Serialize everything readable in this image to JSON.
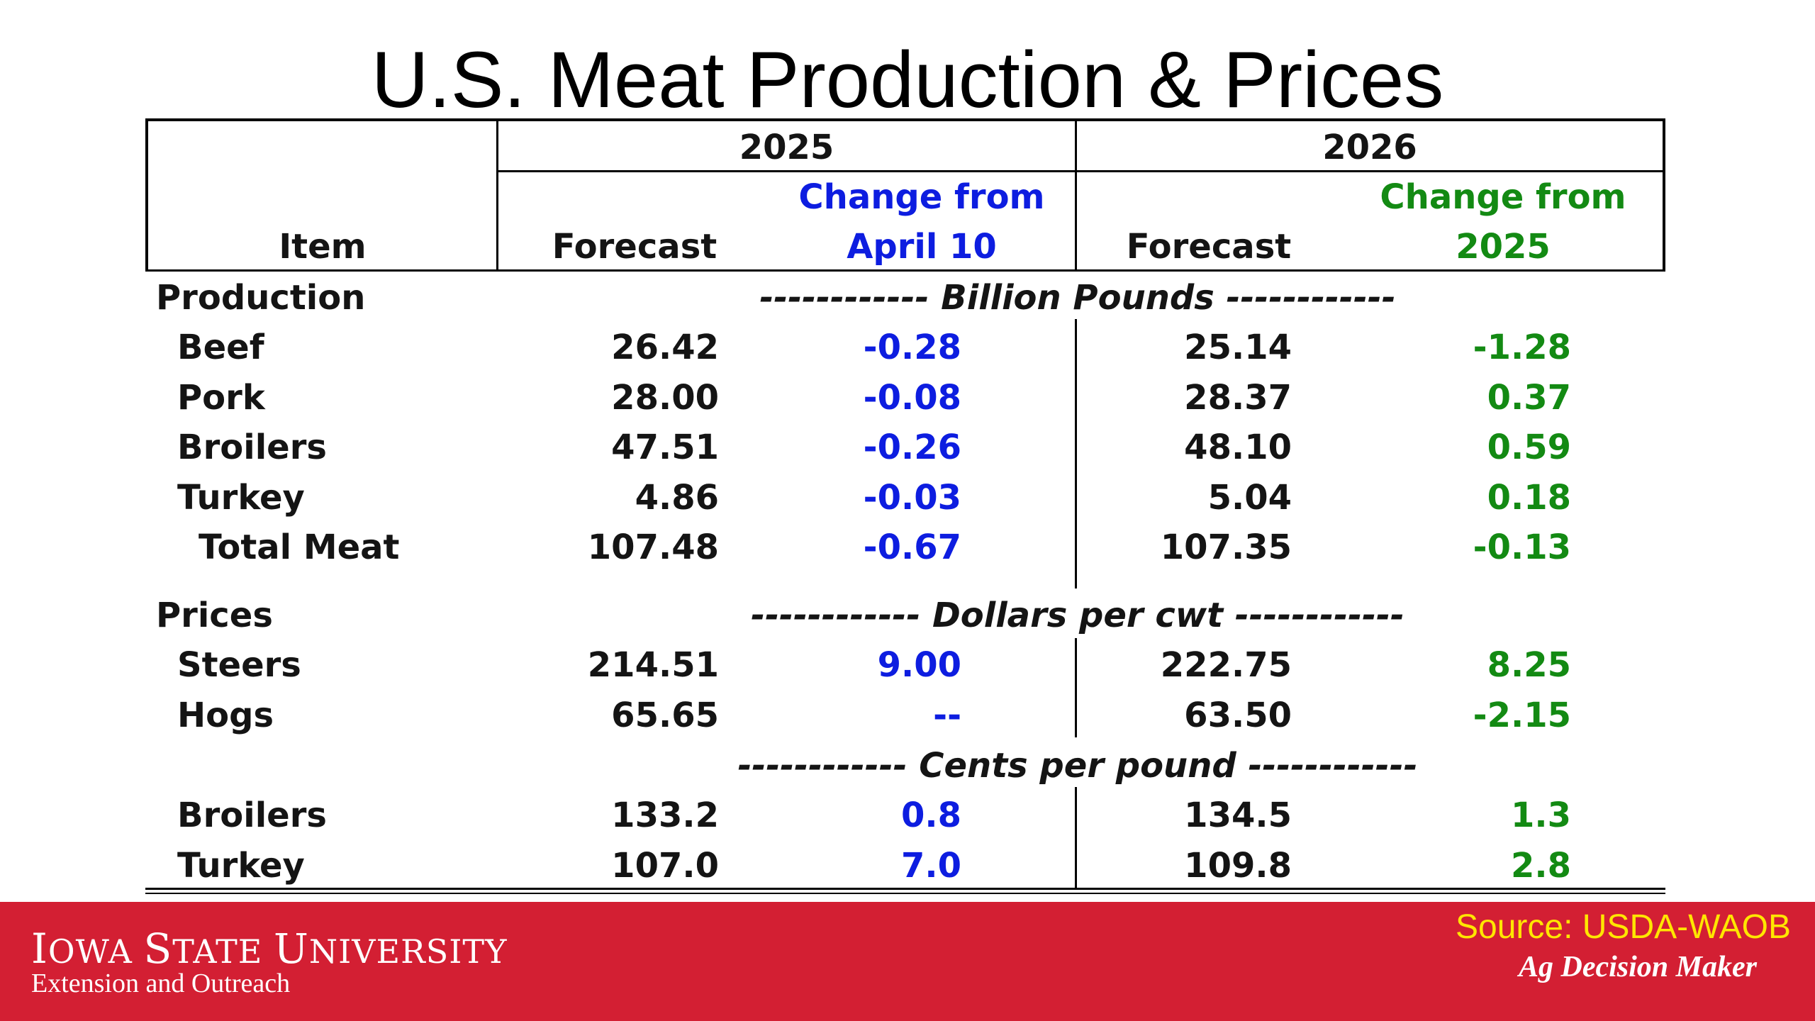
{
  "title": "U.S. Meat Production & Prices",
  "colors": {
    "change_2025": "#0d1de0",
    "change_2026": "#138a13",
    "footer_bg": "#d31f33",
    "source_text": "#ffe600"
  },
  "header": {
    "item": "Item",
    "year_2025": "2025",
    "year_2026": "2026",
    "forecast_2025": "Forecast",
    "change_2025_line1": "Change from",
    "change_2025_line2": "April 10",
    "forecast_2026": "Forecast",
    "change_2026_line1": "Change from",
    "change_2026_line2": "2025"
  },
  "sections": {
    "production": "Production",
    "production_unit": "------------ Billion Pounds ------------",
    "prices": "Prices",
    "dollars_unit": "------------ Dollars per cwt ------------",
    "cents_unit": "------------ Cents per pound ------------"
  },
  "rows": [
    {
      "item": "Beef",
      "f2025": "26.42",
      "c2025": "-0.28",
      "f2026": "25.14",
      "c2026": "-1.28"
    },
    {
      "item": "Pork",
      "f2025": "28.00",
      "c2025": "-0.08",
      "f2026": "28.37",
      "c2026": "0.37"
    },
    {
      "item": "Broilers",
      "f2025": "47.51",
      "c2025": "-0.26",
      "f2026": "48.10",
      "c2026": "0.59"
    },
    {
      "item": "Turkey",
      "f2025": "4.86",
      "c2025": "-0.03",
      "f2026": "5.04",
      "c2026": "0.18"
    },
    {
      "item": "Total Meat",
      "f2025": "107.48",
      "c2025": "-0.67",
      "f2026": "107.35",
      "c2026": "-0.13"
    },
    {
      "item": "Steers",
      "f2025": "214.51",
      "c2025": "9.00",
      "f2026": "222.75",
      "c2026": "8.25"
    },
    {
      "item": "Hogs",
      "f2025": "65.65",
      "c2025": "--",
      "f2026": "63.50",
      "c2026": "-2.15"
    },
    {
      "item": "Broilers",
      "f2025": "133.2",
      "c2025": "0.8",
      "f2026": "134.5",
      "c2026": "1.3"
    },
    {
      "item": "Turkey",
      "f2025": "107.0",
      "c2025": "7.0",
      "f2026": "109.8",
      "c2026": "2.8"
    }
  ],
  "footer": {
    "university_line1_cap1": "I",
    "university_line1_rest1": "OWA ",
    "university_line1_cap2": "S",
    "university_line1_rest2": "TATE ",
    "university_line1_cap3": "U",
    "university_line1_rest3": "NIVERSITY",
    "university_line2": "Extension and Outreach",
    "source": "Source: USDA-WAOB",
    "program": "Ag Decision Maker"
  }
}
